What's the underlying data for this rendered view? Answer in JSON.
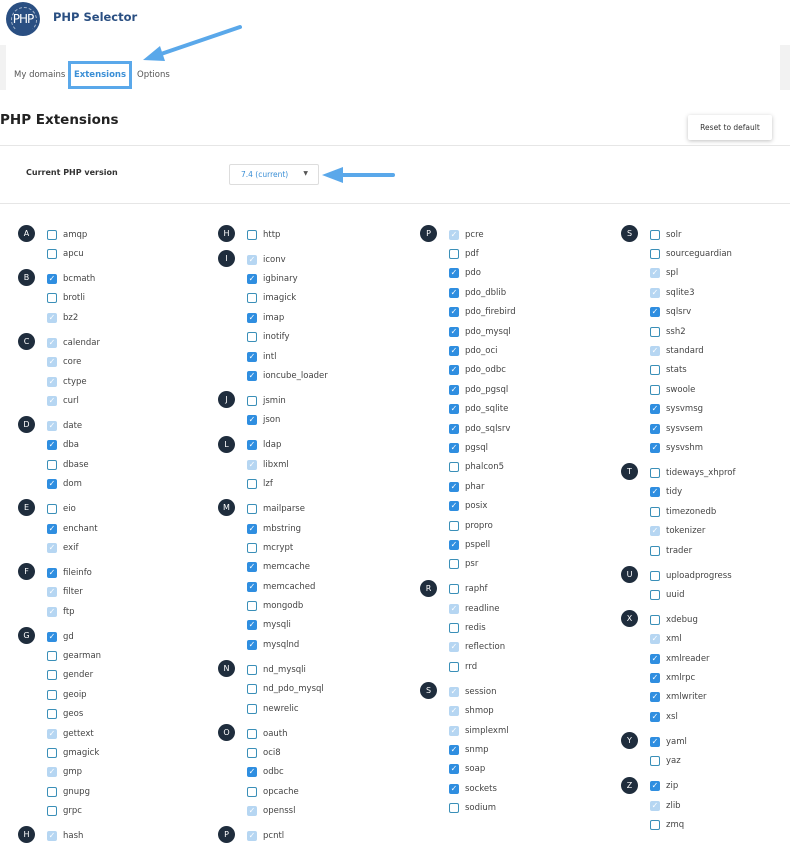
{
  "header": {
    "logo_text": "PHP",
    "title": "PHP Selector"
  },
  "tabs": [
    {
      "label": "My domains"
    },
    {
      "label": "Extensions",
      "active": true
    },
    {
      "label": "Options"
    }
  ],
  "page": {
    "title": "PHP Extensions",
    "reset_label": "Reset to default",
    "version_label": "Current PHP version",
    "version_value": "7.4 (current)"
  },
  "colors": {
    "accent": "#2f8ee0",
    "builtin": "#b6d6f2",
    "annotation_arrow": "#5aa8ea",
    "badge": "#1f2d3d"
  },
  "columns": [
    [
      {
        "letter": "A",
        "items": [
          [
            "amqp",
            "off"
          ],
          [
            "apcu",
            "off"
          ]
        ]
      },
      {
        "letter": "B",
        "items": [
          [
            "bcmath",
            "on"
          ],
          [
            "brotli",
            "off"
          ],
          [
            "bz2",
            "builtin"
          ]
        ]
      },
      {
        "letter": "C",
        "items": [
          [
            "calendar",
            "builtin"
          ],
          [
            "core",
            "builtin"
          ],
          [
            "ctype",
            "builtin"
          ],
          [
            "curl",
            "builtin"
          ]
        ]
      },
      {
        "letter": "D",
        "items": [
          [
            "date",
            "builtin"
          ],
          [
            "dba",
            "on"
          ],
          [
            "dbase",
            "off"
          ],
          [
            "dom",
            "on"
          ]
        ]
      },
      {
        "letter": "E",
        "items": [
          [
            "eio",
            "off"
          ],
          [
            "enchant",
            "on"
          ],
          [
            "exif",
            "builtin"
          ]
        ]
      },
      {
        "letter": "F",
        "items": [
          [
            "fileinfo",
            "on"
          ],
          [
            "filter",
            "builtin"
          ],
          [
            "ftp",
            "builtin"
          ]
        ]
      },
      {
        "letter": "G",
        "items": [
          [
            "gd",
            "on"
          ],
          [
            "gearman",
            "off"
          ],
          [
            "gender",
            "off"
          ],
          [
            "geoip",
            "off"
          ],
          [
            "geos",
            "off"
          ],
          [
            "gettext",
            "builtin"
          ],
          [
            "gmagick",
            "off"
          ],
          [
            "gmp",
            "builtin"
          ],
          [
            "gnupg",
            "off"
          ],
          [
            "grpc",
            "off"
          ]
        ]
      },
      {
        "letter": "H",
        "items": [
          [
            "hash",
            "builtin"
          ]
        ]
      }
    ],
    [
      {
        "letter": "H",
        "items": [
          [
            "http",
            "off"
          ]
        ]
      },
      {
        "letter": "I",
        "items": [
          [
            "iconv",
            "builtin"
          ],
          [
            "igbinary",
            "on"
          ],
          [
            "imagick",
            "off"
          ],
          [
            "imap",
            "on"
          ],
          [
            "inotify",
            "off"
          ],
          [
            "intl",
            "on"
          ],
          [
            "ioncube_loader",
            "on"
          ]
        ]
      },
      {
        "letter": "J",
        "items": [
          [
            "jsmin",
            "off"
          ],
          [
            "json",
            "on"
          ]
        ]
      },
      {
        "letter": "L",
        "items": [
          [
            "ldap",
            "on"
          ],
          [
            "libxml",
            "builtin"
          ],
          [
            "lzf",
            "off"
          ]
        ]
      },
      {
        "letter": "M",
        "items": [
          [
            "mailparse",
            "off"
          ],
          [
            "mbstring",
            "on"
          ],
          [
            "mcrypt",
            "off"
          ],
          [
            "memcache",
            "on"
          ],
          [
            "memcached",
            "on"
          ],
          [
            "mongodb",
            "off"
          ],
          [
            "mysqli",
            "on"
          ],
          [
            "mysqlnd",
            "on"
          ]
        ]
      },
      {
        "letter": "N",
        "items": [
          [
            "nd_mysqli",
            "off"
          ],
          [
            "nd_pdo_mysql",
            "off"
          ],
          [
            "newrelic",
            "off"
          ]
        ]
      },
      {
        "letter": "O",
        "items": [
          [
            "oauth",
            "off"
          ],
          [
            "oci8",
            "off"
          ],
          [
            "odbc",
            "on"
          ],
          [
            "opcache",
            "off"
          ],
          [
            "openssl",
            "builtin"
          ]
        ]
      },
      {
        "letter": "P",
        "items": [
          [
            "pcntl",
            "builtin"
          ]
        ]
      }
    ],
    [
      {
        "letter": "P",
        "items": [
          [
            "pcre",
            "builtin"
          ],
          [
            "pdf",
            "off"
          ],
          [
            "pdo",
            "on"
          ],
          [
            "pdo_dblib",
            "on"
          ],
          [
            "pdo_firebird",
            "on"
          ],
          [
            "pdo_mysql",
            "on"
          ],
          [
            "pdo_oci",
            "on"
          ],
          [
            "pdo_odbc",
            "on"
          ],
          [
            "pdo_pgsql",
            "on"
          ],
          [
            "pdo_sqlite",
            "on"
          ],
          [
            "pdo_sqlsrv",
            "on"
          ],
          [
            "pgsql",
            "on"
          ],
          [
            "phalcon5",
            "off"
          ],
          [
            "phar",
            "on"
          ],
          [
            "posix",
            "on"
          ],
          [
            "propro",
            "off"
          ],
          [
            "pspell",
            "on"
          ],
          [
            "psr",
            "off"
          ]
        ]
      },
      {
        "letter": "R",
        "items": [
          [
            "raphf",
            "off"
          ],
          [
            "readline",
            "builtin"
          ],
          [
            "redis",
            "off"
          ],
          [
            "reflection",
            "builtin"
          ],
          [
            "rrd",
            "off"
          ]
        ]
      },
      {
        "letter": "S",
        "items": [
          [
            "session",
            "builtin"
          ],
          [
            "shmop",
            "builtin"
          ],
          [
            "simplexml",
            "builtin"
          ],
          [
            "snmp",
            "on"
          ],
          [
            "soap",
            "on"
          ],
          [
            "sockets",
            "on"
          ],
          [
            "sodium",
            "off"
          ]
        ]
      }
    ],
    [
      {
        "letter": "S",
        "items": [
          [
            "solr",
            "off"
          ],
          [
            "sourceguardian",
            "off"
          ],
          [
            "spl",
            "builtin"
          ],
          [
            "sqlite3",
            "builtin"
          ],
          [
            "sqlsrv",
            "on"
          ],
          [
            "ssh2",
            "off"
          ],
          [
            "standard",
            "builtin"
          ],
          [
            "stats",
            "off"
          ],
          [
            "swoole",
            "off"
          ],
          [
            "sysvmsg",
            "on"
          ],
          [
            "sysvsem",
            "on"
          ],
          [
            "sysvshm",
            "on"
          ]
        ]
      },
      {
        "letter": "T",
        "items": [
          [
            "tideways_xhprof",
            "off"
          ],
          [
            "tidy",
            "on"
          ],
          [
            "timezonedb",
            "off"
          ],
          [
            "tokenizer",
            "builtin"
          ],
          [
            "trader",
            "off"
          ]
        ]
      },
      {
        "letter": "U",
        "items": [
          [
            "uploadprogress",
            "off"
          ],
          [
            "uuid",
            "off"
          ]
        ]
      },
      {
        "letter": "X",
        "items": [
          [
            "xdebug",
            "off"
          ],
          [
            "xml",
            "builtin"
          ],
          [
            "xmlreader",
            "on"
          ],
          [
            "xmlrpc",
            "on"
          ],
          [
            "xmlwriter",
            "on"
          ],
          [
            "xsl",
            "on"
          ]
        ]
      },
      {
        "letter": "Y",
        "items": [
          [
            "yaml",
            "on"
          ],
          [
            "yaz",
            "off"
          ]
        ]
      },
      {
        "letter": "Z",
        "items": [
          [
            "zip",
            "on"
          ],
          [
            "zlib",
            "builtin"
          ],
          [
            "zmq",
            "off"
          ]
        ]
      }
    ]
  ]
}
